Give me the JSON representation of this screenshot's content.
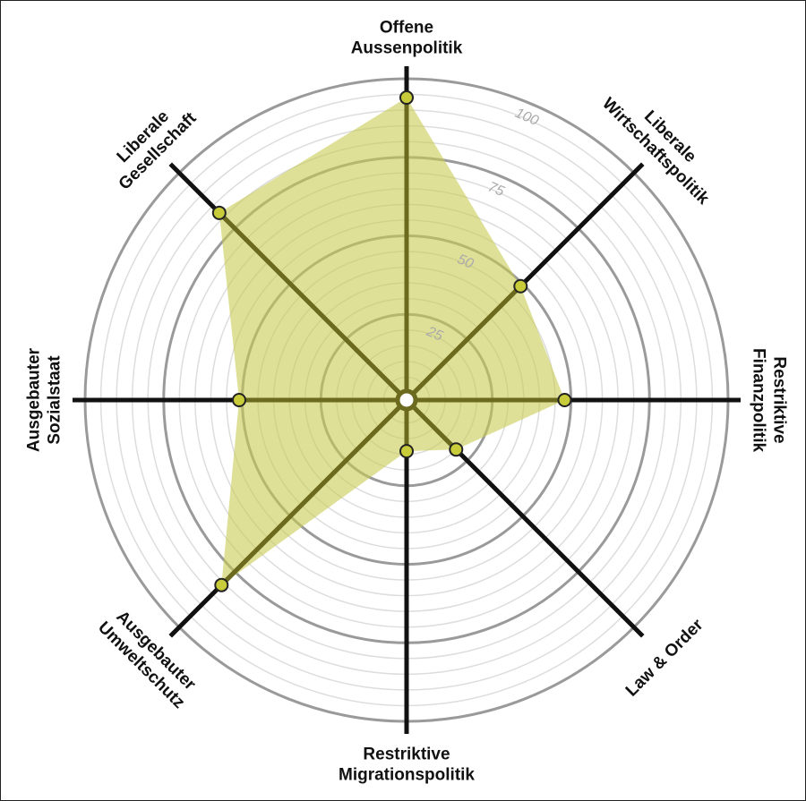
{
  "chart_data": {
    "type": "radar",
    "categories": [
      "Offene\nAussenpolitik",
      "Liberale\nWirtschaftspolitik",
      "Restriktive\nFinanzpolitik",
      "Law & Order",
      "Restriktive\nMigrationspolitik",
      "Ausgebauter\nUmweltschutz",
      "Ausgebauter\nSozialstaat",
      "Liberale\nGesellschaft"
    ],
    "values": [
      94,
      49,
      48,
      20,
      14,
      81,
      51,
      82
    ],
    "color": "#c9cc52",
    "ylim": [
      0,
      100
    ],
    "yticks": [
      25,
      50,
      75,
      100
    ],
    "grid": true
  }
}
